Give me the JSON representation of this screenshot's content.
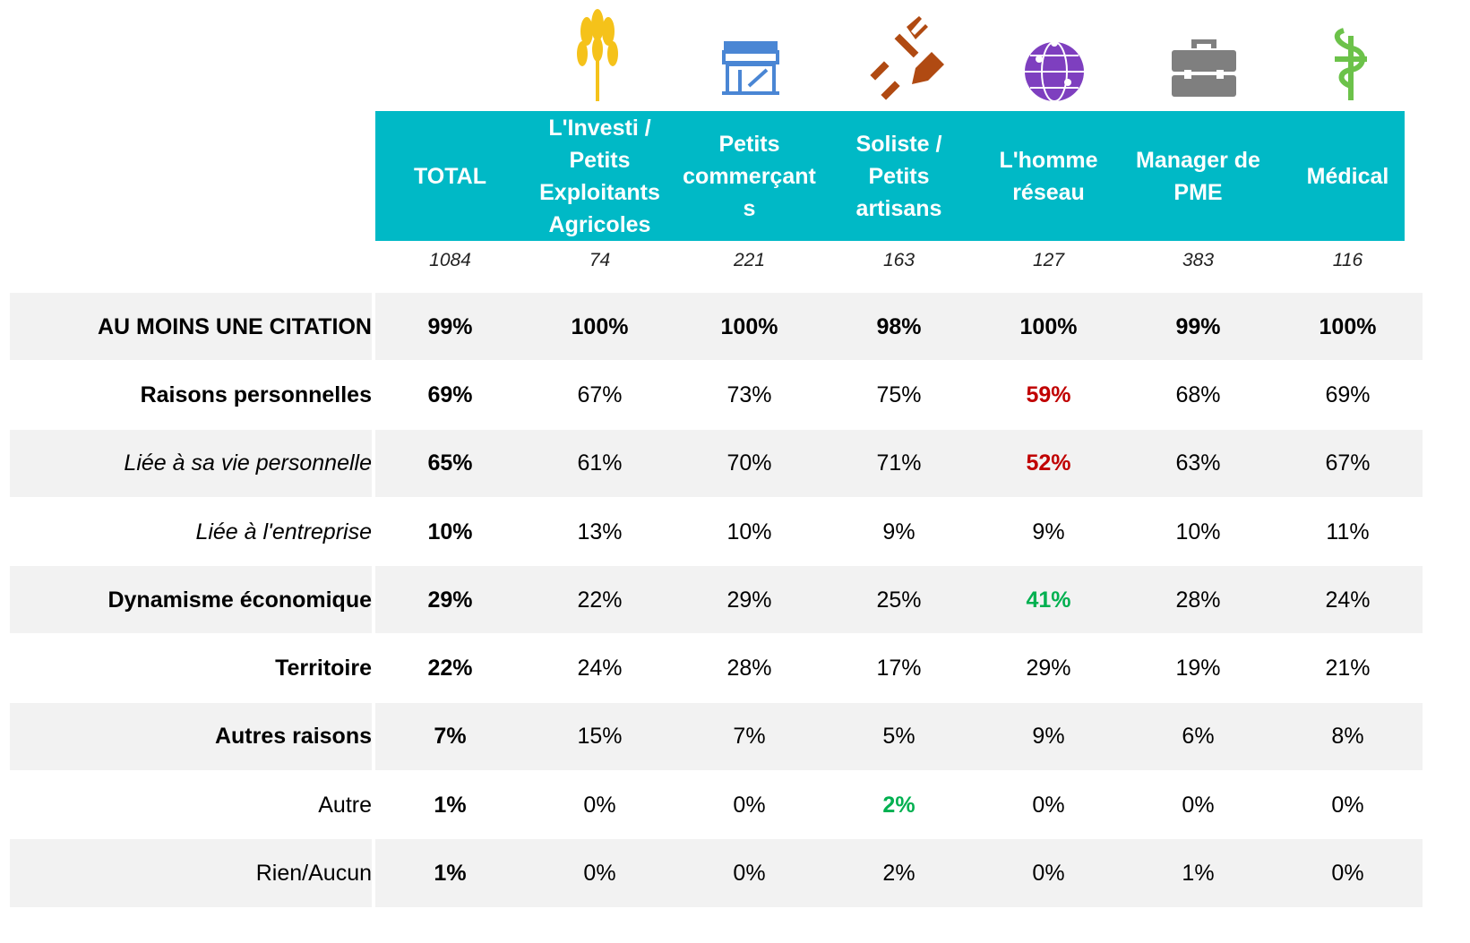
{
  "table": {
    "columns": [
      "TOTAL",
      "L'Investi / Petits Exploitants Agricoles",
      "Petits commerçants",
      "Soliste / Petits artisans",
      "L'homme réseau",
      "Manager de PME",
      "Médical"
    ],
    "counts": [
      "1084",
      "74",
      "221",
      "163",
      "127",
      "383",
      "116"
    ],
    "rows": [
      {
        "label": "AU MOINS UNE CITATION",
        "label_style": "bold",
        "all_bold": true,
        "cells": [
          "99%",
          "100%",
          "100%",
          "98%",
          "100%",
          "99%",
          "100%"
        ]
      },
      {
        "label": "Raisons personnelles",
        "label_style": "bold",
        "cells": [
          "69%",
          "67%",
          "73%",
          "75%",
          {
            "text": "59%",
            "color": "#c00000"
          },
          "68%",
          "69%"
        ]
      },
      {
        "label": "Liée à sa vie personnelle",
        "label_style": "italic",
        "cells": [
          "65%",
          "61%",
          "70%",
          "71%",
          {
            "text": "52%",
            "color": "#c00000"
          },
          "63%",
          "67%"
        ]
      },
      {
        "label": "Liée à l'entreprise",
        "label_style": "italic",
        "cells": [
          "10%",
          "13%",
          "10%",
          "9%",
          "9%",
          "10%",
          "11%"
        ]
      },
      {
        "label": "Dynamisme économique",
        "label_style": "bold",
        "cells": [
          "29%",
          "22%",
          "29%",
          "25%",
          {
            "text": "41%",
            "color": "#00b050"
          },
          "28%",
          "24%"
        ]
      },
      {
        "label": "Territoire",
        "label_style": "bold",
        "cells": [
          "22%",
          "24%",
          "28%",
          "17%",
          "29%",
          "19%",
          "21%"
        ]
      },
      {
        "label": "Autres raisons",
        "label_style": "bold",
        "cells": [
          "7%",
          "15%",
          "7%",
          "5%",
          "9%",
          "6%",
          "8%"
        ]
      },
      {
        "label": "Autre",
        "label_style": "normal",
        "cells": [
          "1%",
          "0%",
          "0%",
          {
            "text": "2%",
            "color": "#00b050"
          },
          "0%",
          "0%",
          "0%"
        ]
      },
      {
        "label": "Rien/Aucun",
        "label_style": "normal",
        "cells": [
          "1%",
          "0%",
          "0%",
          "2%",
          "0%",
          "1%",
          "0%"
        ]
      }
    ]
  }
}
